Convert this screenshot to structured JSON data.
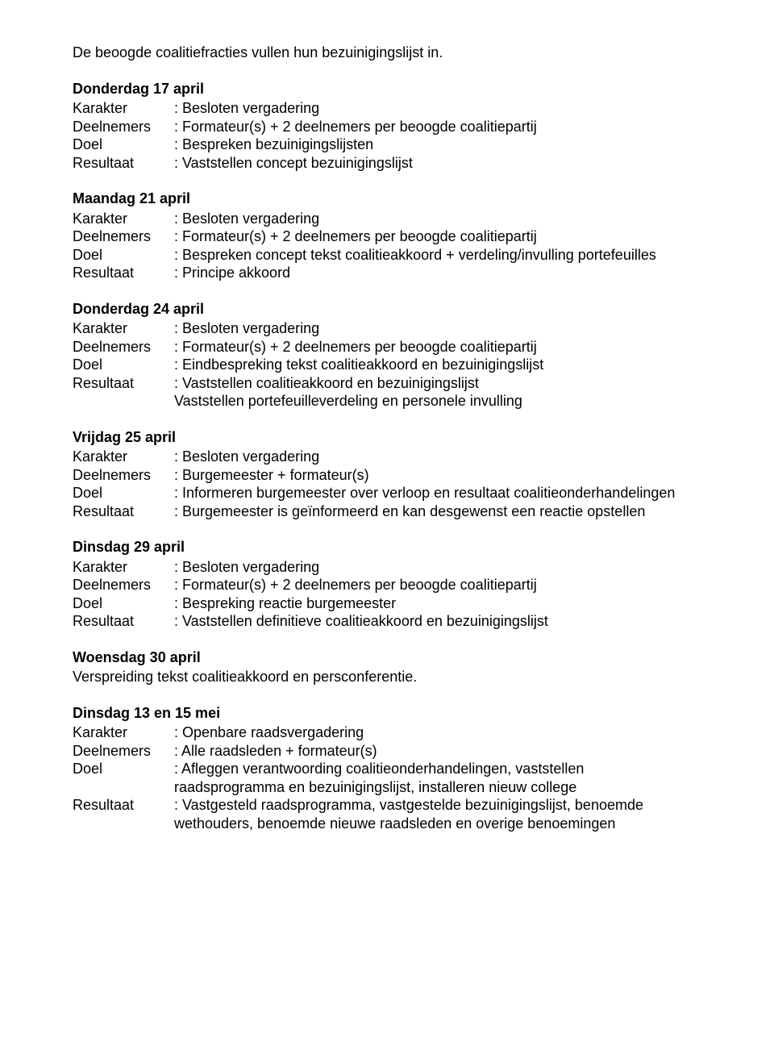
{
  "intro": "De beoogde coalitiefracties vullen hun bezuinigingslijst in.",
  "sections": [
    {
      "title": "Donderdag 17 april",
      "rows": [
        {
          "label": "Karakter",
          "value": ": Besloten vergadering"
        },
        {
          "label": "Deelnemers",
          "value": ": Formateur(s) + 2 deelnemers per beoogde coalitiepartij"
        },
        {
          "label": "Doel",
          "value": ": Bespreken bezuinigingslijsten"
        },
        {
          "label": "Resultaat",
          "value": ": Vaststellen concept bezuinigingslijst"
        }
      ]
    },
    {
      "title": "Maandag 21 april",
      "rows": [
        {
          "label": "Karakter",
          "value": ": Besloten vergadering"
        },
        {
          "label": "Deelnemers",
          "value": ": Formateur(s) + 2 deelnemers per beoogde coalitiepartij"
        },
        {
          "label": "Doel",
          "value": ": Bespreken concept tekst coalitieakkoord + verdeling/invulling portefeuilles"
        },
        {
          "label": "Resultaat",
          "value": ": Principe akkoord"
        }
      ]
    },
    {
      "title": "Donderdag 24 april",
      "rows": [
        {
          "label": "Karakter",
          "value": ": Besloten vergadering"
        },
        {
          "label": "Deelnemers",
          "value": ": Formateur(s) + 2 deelnemers per beoogde coalitiepartij"
        },
        {
          "label": "Doel",
          "value": ": Eindbespreking tekst coalitieakkoord en bezuinigingslijst"
        },
        {
          "label": "Resultaat",
          "value": ": Vaststellen coalitieakkoord en bezuinigingslijst"
        },
        {
          "label": "",
          "value": "  Vaststellen portefeuilleverdeling en personele invulling"
        }
      ]
    },
    {
      "title": "Vrijdag 25 april",
      "rows": [
        {
          "label": "Karakter",
          "value": ": Besloten vergadering"
        },
        {
          "label": "Deelnemers",
          "value": ": Burgemeester + formateur(s)"
        },
        {
          "label": "Doel",
          "value": ": Informeren burgemeester over verloop en resultaat coalitieonderhandelingen"
        },
        {
          "label": "Resultaat",
          "value": ": Burgemeester is geïnformeerd en kan desgewenst een reactie opstellen"
        }
      ]
    },
    {
      "title": "Dinsdag 29 april",
      "rows": [
        {
          "label": "Karakter",
          "value": ": Besloten vergadering"
        },
        {
          "label": "Deelnemers",
          "value": ": Formateur(s) + 2 deelnemers per beoogde coalitiepartij"
        },
        {
          "label": "Doel",
          "value": ": Bespreking reactie burgemeester"
        },
        {
          "label": "Resultaat",
          "value": ": Vaststellen definitieve coalitieakkoord en bezuinigingslijst"
        }
      ]
    },
    {
      "title": "Woensdag 30 april",
      "freetext": "Verspreiding tekst coalitieakkoord en persconferentie."
    },
    {
      "title": "Dinsdag 13 en 15 mei",
      "rows": [
        {
          "label": "Karakter",
          "value": ": Openbare raadsvergadering"
        },
        {
          "label": "Deelnemers",
          "value": ": Alle raadsleden + formateur(s)"
        },
        {
          "label": "Doel",
          "value": ": Afleggen verantwoording coalitieonderhandelingen, vaststellen"
        },
        {
          "label": "",
          "value": "  raadsprogramma en bezuinigingslijst, installeren nieuw college"
        },
        {
          "label": "Resultaat",
          "value": ": Vastgesteld raadsprogramma, vastgestelde bezuinigingslijst, benoemde"
        },
        {
          "label": "",
          "value": "  wethouders, benoemde nieuwe raadsleden en overige benoemingen"
        }
      ]
    }
  ]
}
